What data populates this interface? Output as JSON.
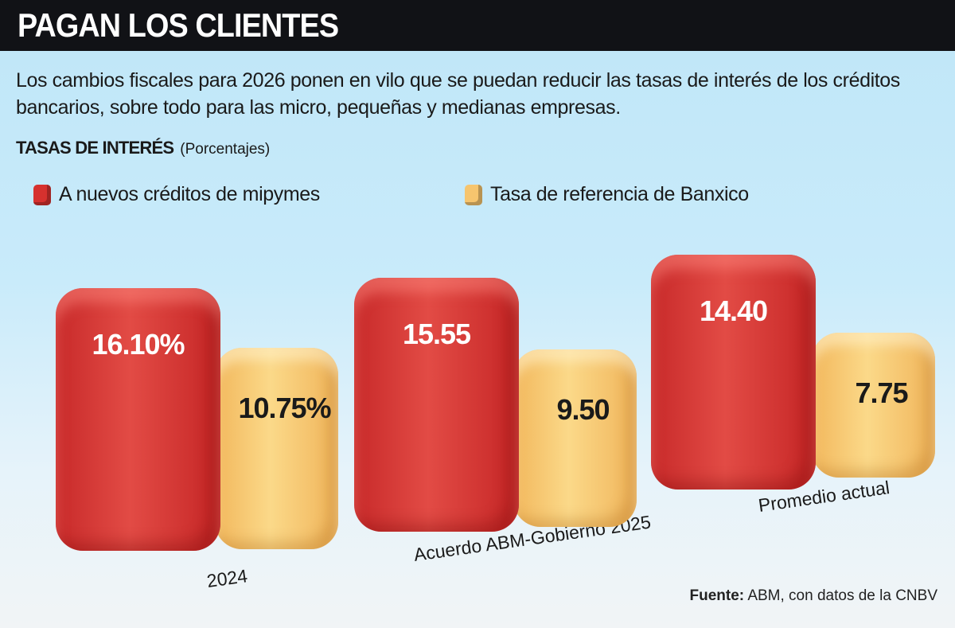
{
  "title": "PAGAN LOS CLIENTES",
  "subtitle": "Los cambios fiscales para 2026 ponen en vilo que se puedan reducir las tasas de interés de los créditos bancarios, sobre todo para las micro, pequeñas y medianas empresas.",
  "source": {
    "label": "Fuente:",
    "text": " ABM, con datos de la CNBV"
  },
  "chart_data": {
    "type": "bar",
    "title": "TASAS DE INTERÉS",
    "unit": "(Porcentajes)",
    "categories": [
      "2024",
      "Acuerdo ABM-Gobierno 2025",
      "Promedio actual"
    ],
    "series": [
      {
        "name": "A nuevos créditos de mipymes",
        "color": "#d6312e",
        "values": [
          16.1,
          15.55,
          14.4
        ],
        "labels": [
          "16.10%",
          "15.55",
          "14.40"
        ]
      },
      {
        "name": "Tasa de referencia de Banxico",
        "color": "#f6c56e",
        "values": [
          10.75,
          9.5,
          7.75
        ],
        "labels": [
          "10.75%",
          "9.50",
          "7.75"
        ]
      }
    ],
    "legend": "top"
  }
}
